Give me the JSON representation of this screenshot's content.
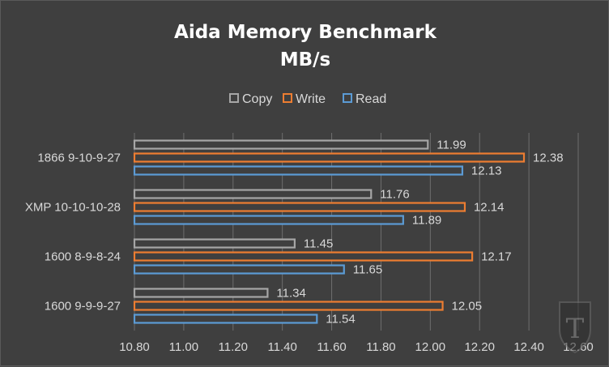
{
  "chart_data": {
    "type": "bar",
    "orientation": "horizontal",
    "title": "Aida Memory Benchmark",
    "subtitle": "MB/s",
    "categories": [
      "1866 9-10-9-27",
      "XMP 10-10-10-28",
      "1600 8-9-8-24",
      "1600 9-9-9-27"
    ],
    "series": [
      {
        "name": "Copy",
        "color": "#a6a6a6",
        "values": [
          11.99,
          11.76,
          11.45,
          11.34
        ]
      },
      {
        "name": "Write",
        "color": "#ed7d31",
        "values": [
          12.38,
          12.14,
          12.17,
          12.05
        ]
      },
      {
        "name": "Read",
        "color": "#5b9bd5",
        "values": [
          12.13,
          11.89,
          11.65,
          11.54
        ]
      }
    ],
    "xlim": [
      10.8,
      12.6
    ],
    "xticks": [
      "10.80",
      "11.00",
      "11.20",
      "11.40",
      "11.60",
      "11.80",
      "12.00",
      "12.20",
      "12.40",
      "12.60"
    ],
    "grid": true,
    "legend": "top-center",
    "watermark": "T-logo"
  }
}
